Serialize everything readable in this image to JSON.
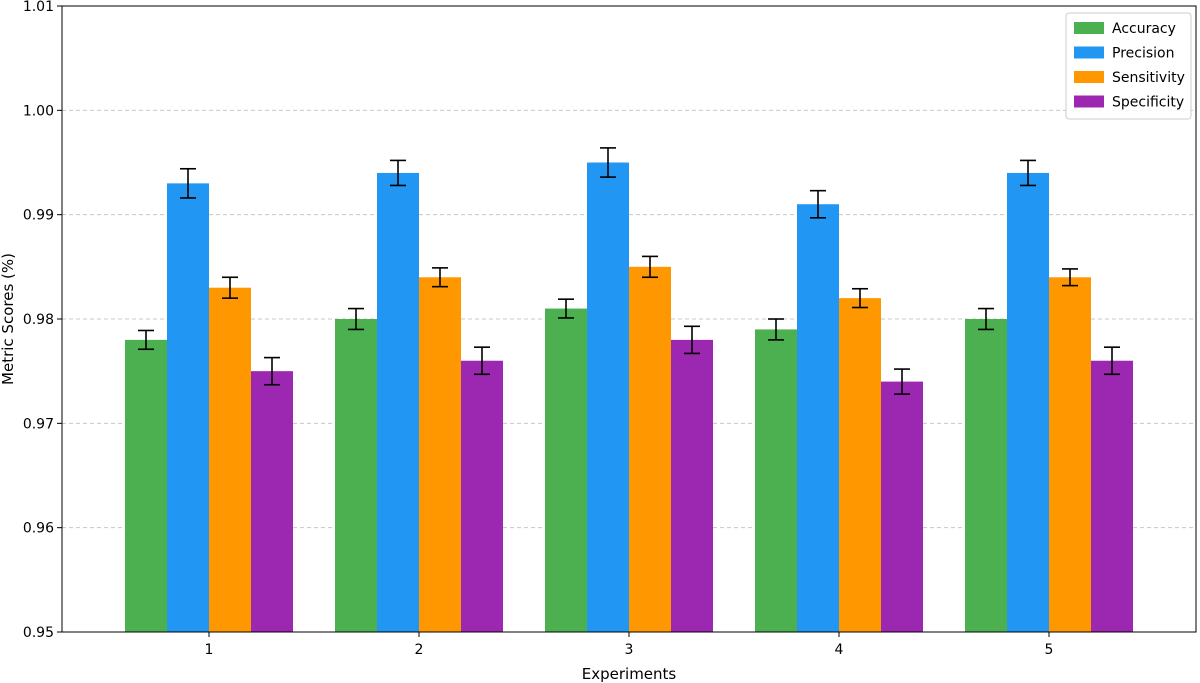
{
  "chart_data": {
    "type": "bar",
    "title": "",
    "xlabel": "Experiments",
    "ylabel": "Metric Scores (%)",
    "categories": [
      "1",
      "2",
      "3",
      "4",
      "5"
    ],
    "ylim": [
      0.95,
      1.01
    ],
    "yticks": [
      "0.95",
      "0.96",
      "0.97",
      "0.98",
      "0.99",
      "1.00",
      "1.01"
    ],
    "grid": "horizontal dashed",
    "legend_position": "top-right",
    "error_bars": true,
    "series": [
      {
        "name": "Accuracy",
        "color": "#4caf50",
        "values": [
          0.978,
          0.98,
          0.981,
          0.979,
          0.98
        ],
        "errors": [
          0.0009,
          0.001,
          0.0009,
          0.001,
          0.001
        ]
      },
      {
        "name": "Precision",
        "color": "#2196f3",
        "values": [
          0.993,
          0.994,
          0.995,
          0.991,
          0.994
        ],
        "errors": [
          0.0014,
          0.0012,
          0.0014,
          0.0013,
          0.0012
        ]
      },
      {
        "name": "Sensitivity",
        "color": "#ff9800",
        "values": [
          0.983,
          0.984,
          0.985,
          0.982,
          0.984
        ],
        "errors": [
          0.001,
          0.0009,
          0.001,
          0.0009,
          0.0008
        ]
      },
      {
        "name": "Specificity",
        "color": "#9c27b0",
        "values": [
          0.975,
          0.976,
          0.978,
          0.974,
          0.976
        ],
        "errors": [
          0.0013,
          0.0013,
          0.0013,
          0.0012,
          0.0013
        ]
      }
    ]
  }
}
